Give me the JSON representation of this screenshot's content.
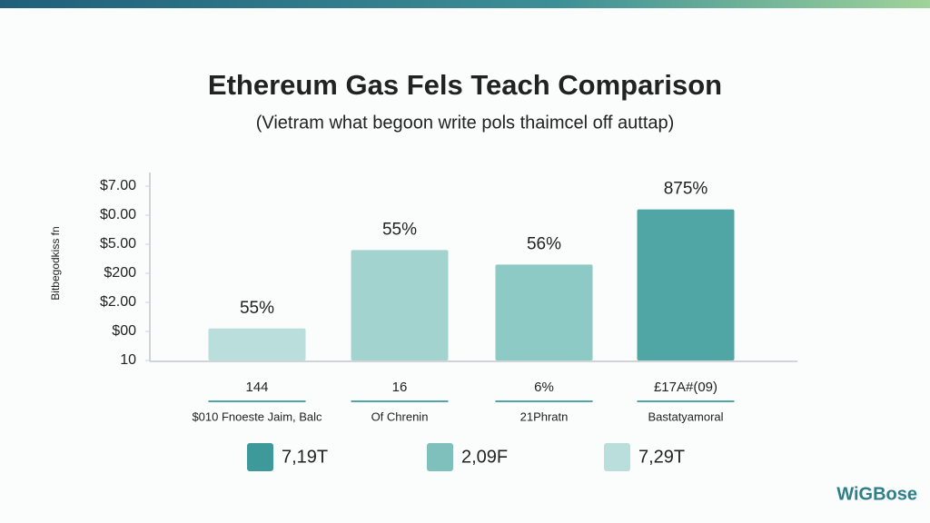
{
  "chart_data": {
    "type": "bar",
    "title": "Ethereum Gas Fels Teach Comparison",
    "subtitle": "(Vietram what begoon write pols thaimcel off auttap)",
    "y_label": "Bitbegodkiss fn",
    "categories": [
      "$010 Fnoeste Jaim, Balc",
      "Of Chrenin",
      "21Phratn",
      "Bastatyamoral"
    ],
    "sublabels": [
      "144",
      "16",
      "6%",
      "£17A#(09)"
    ],
    "values": [
      1.1,
      3.8,
      3.3,
      5.2
    ],
    "annotations": [
      "55%",
      "55%",
      "56%",
      "875%"
    ],
    "colors": [
      "#b9dedb",
      "#a3d3cf",
      "#8ecac5",
      "#4fa6a4"
    ],
    "ylim": [
      0,
      6
    ],
    "yticks": [
      {
        "value": 0,
        "label": "10"
      },
      {
        "value": 1,
        "label": "$00"
      },
      {
        "value": 2,
        "label": "$2.00"
      },
      {
        "value": 3,
        "label": "$200"
      },
      {
        "value": 4,
        "label": "$5.00"
      },
      {
        "value": 5,
        "label": "$0.00"
      },
      {
        "value": 6,
        "label": "$7.00"
      }
    ],
    "legend": [
      {
        "name": "7,19T",
        "color": "#3e9a9a"
      },
      {
        "name": "2,09F",
        "color": "#7fc0bd"
      },
      {
        "name": "7,29T",
        "color": "#b9dedb"
      }
    ],
    "watermark": "WiGBose"
  }
}
